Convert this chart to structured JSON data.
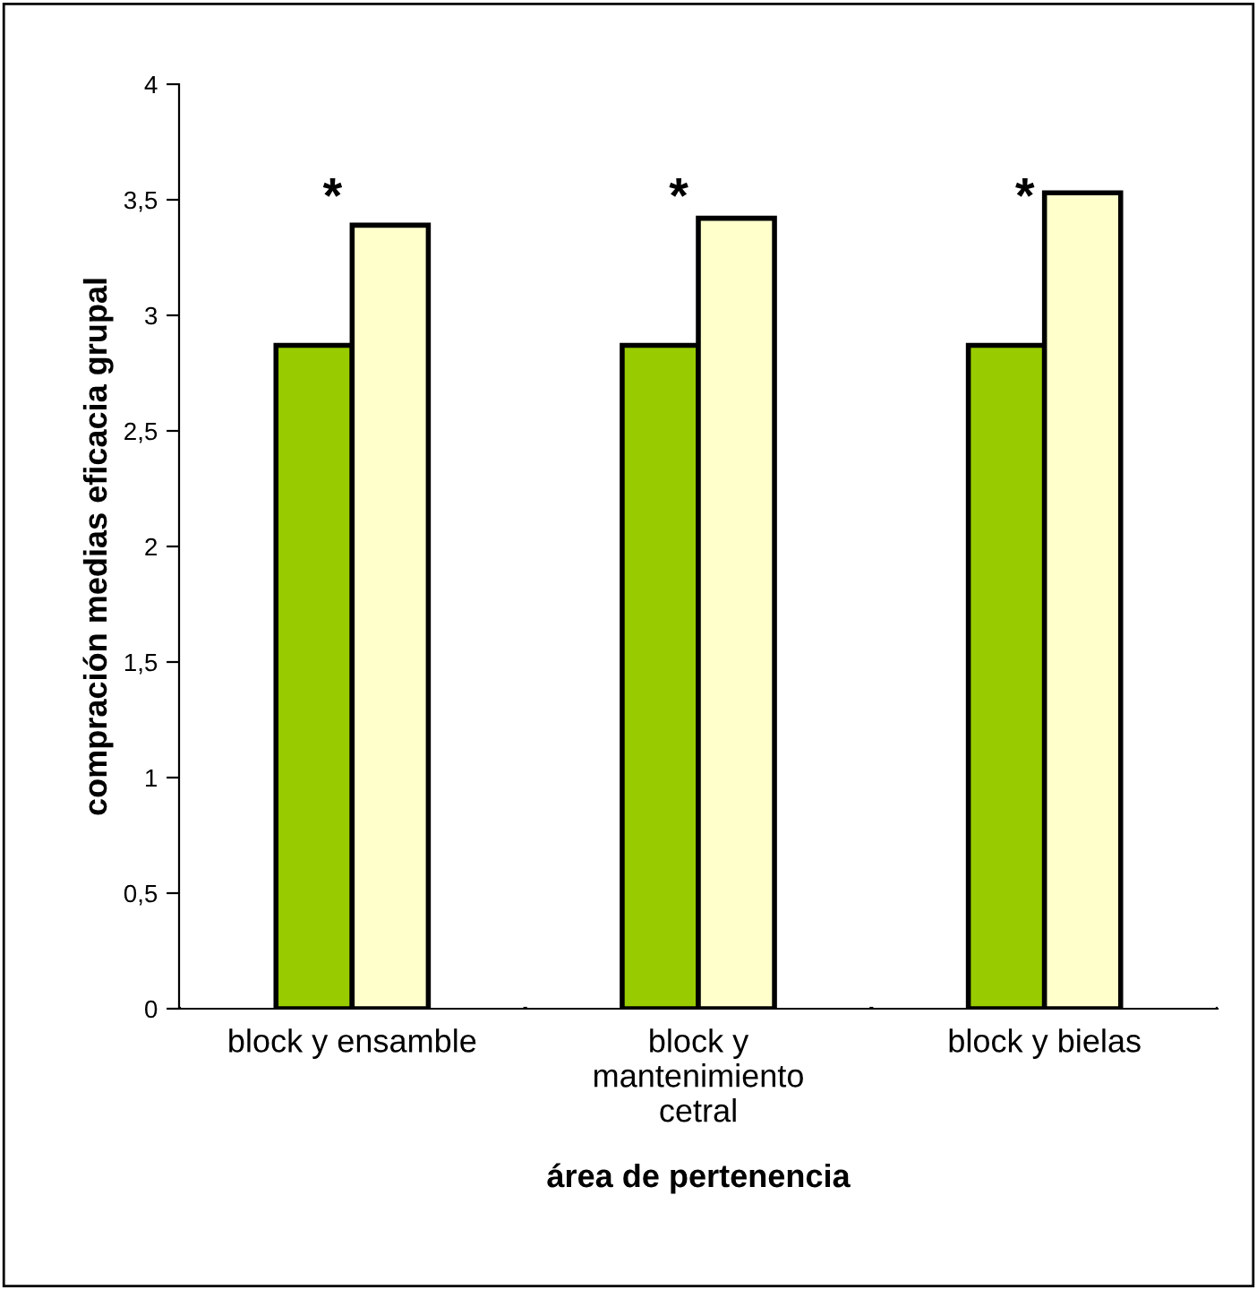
{
  "chart_data": {
    "type": "bar",
    "xlabel": "área de pertenencia",
    "ylabel": "compración medias eficacia grupal",
    "categories": [
      "block y ensamble",
      "block y\nmantenimiento\ncetral",
      "block y bielas"
    ],
    "series": [
      {
        "color": "#99cc00",
        "values": [
          2.87,
          2.87,
          2.87
        ]
      },
      {
        "color": "#ffffcc",
        "values": [
          3.39,
          3.42,
          3.53
        ]
      }
    ],
    "ylim": [
      0,
      4
    ],
    "yticks": [
      0,
      {
        "value": 0.5,
        "label": "0,5"
      },
      1,
      {
        "value": 1.5,
        "label": "1,5"
      },
      2,
      {
        "value": 2.5,
        "label": "2,5"
      },
      3,
      {
        "value": 3.5,
        "label": "3,5"
      },
      4
    ],
    "annotations": [
      {
        "text": "*",
        "x": "block y ensamble",
        "y": 3.4
      },
      {
        "text": "*",
        "x": "block y\nmantenimiento\ncetral",
        "y": 3.4
      },
      {
        "text": "*",
        "x": "block y bielas",
        "y": 3.4
      }
    ],
    "grid": false,
    "legend": false
  }
}
